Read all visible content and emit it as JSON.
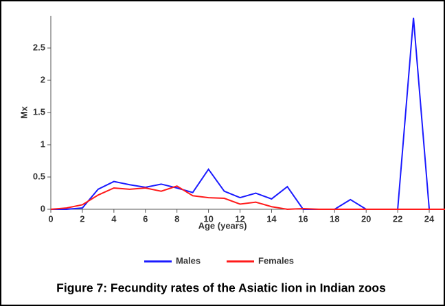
{
  "chart_data": {
    "type": "line",
    "caption": "Figure 7: Fecundity rates of the Asiatic lion in Indian zoos",
    "xlabel": "Age (years)",
    "ylabel": "Mx",
    "x": [
      0,
      1,
      2,
      3,
      4,
      5,
      6,
      7,
      8,
      9,
      10,
      11,
      12,
      13,
      14,
      15,
      16,
      17,
      18,
      19,
      20,
      21,
      22,
      23,
      24,
      25
    ],
    "series": [
      {
        "name": "Males",
        "color": "#1a1aff",
        "values": [
          0,
          0,
          0.02,
          0.31,
          0.43,
          0.38,
          0.34,
          0.39,
          0.33,
          0.26,
          0.62,
          0.28,
          0.18,
          0.25,
          0.16,
          0.35,
          0,
          0,
          0,
          0.15,
          0,
          0,
          0,
          2.97,
          0,
          0
        ]
      },
      {
        "name": "Females",
        "color": "#ff1a1a",
        "values": [
          0,
          0.02,
          0.07,
          0.22,
          0.33,
          0.31,
          0.33,
          0.28,
          0.36,
          0.21,
          0.18,
          0.17,
          0.08,
          0.11,
          0.04,
          0,
          0.01,
          0,
          0,
          0,
          0,
          0,
          0,
          0,
          0,
          0
        ]
      }
    ],
    "xlim": [
      0,
      25
    ],
    "ylim": [
      0,
      3
    ],
    "xticks": [
      0,
      2,
      4,
      6,
      8,
      10,
      12,
      14,
      16,
      18,
      20,
      22,
      24
    ],
    "yticks": [
      0,
      0.5,
      1,
      1.5,
      2,
      2.5
    ],
    "legend": "bottom"
  }
}
